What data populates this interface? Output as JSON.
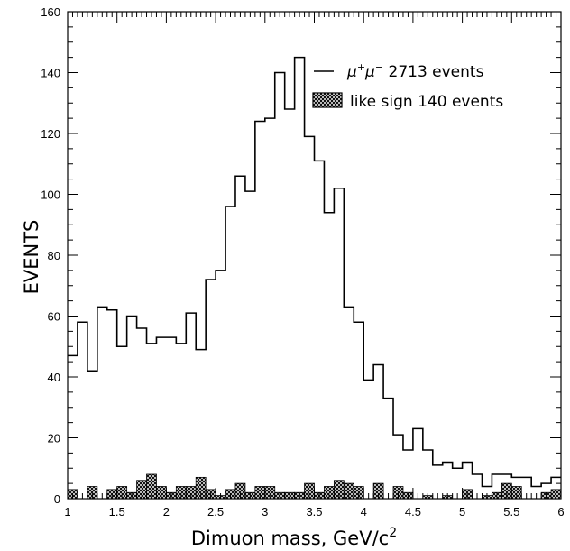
{
  "chart_data": {
    "type": "histogram",
    "xlabel": "Dimuon mass, GeV/c",
    "xlabel_superscript": "2",
    "ylabel": "EVENTS",
    "xlim": [
      1,
      6
    ],
    "ylim": [
      0,
      160
    ],
    "bin_width": 0.1,
    "x_ticks": [
      1,
      1.5,
      2,
      2.5,
      3,
      3.5,
      4,
      4.5,
      5,
      5.5,
      6
    ],
    "x_tick_labels": [
      "1",
      "1.5",
      "2",
      "2.5",
      "3",
      "3.5",
      "4",
      "4.5",
      "5",
      "5.5",
      "6"
    ],
    "y_ticks": [
      0,
      20,
      40,
      60,
      80,
      100,
      120,
      140,
      160
    ],
    "y_tick_labels": [
      "0",
      "20",
      "40",
      "60",
      "80",
      "100",
      "120",
      "140",
      "160"
    ],
    "legend_position": "top-right",
    "series": [
      {
        "name_main": "μ",
        "name_sup1": "+",
        "name_mid": "μ",
        "name_sup2": "−",
        "name_rest": " 2713 events",
        "style": "step-outline",
        "bin_edges_start": 1.0,
        "values": [
          47,
          58,
          42,
          63,
          62,
          50,
          60,
          56,
          51,
          53,
          53,
          51,
          61,
          49,
          72,
          75,
          96,
          106,
          101,
          124,
          125,
          140,
          128,
          145,
          119,
          111,
          94,
          102,
          63,
          58,
          39,
          44,
          33,
          21,
          16,
          23,
          16,
          11,
          12,
          10,
          12,
          8,
          4,
          8,
          8,
          7,
          7,
          4,
          5,
          7
        ]
      },
      {
        "name": "like sign 140 events",
        "style": "hatched-fill",
        "bin_edges_start": 1.0,
        "values": [
          3,
          0,
          4,
          0,
          3,
          4,
          2,
          6,
          8,
          4,
          2,
          4,
          4,
          7,
          3,
          1,
          3,
          5,
          2,
          4,
          4,
          2,
          2,
          2,
          5,
          2,
          4,
          6,
          5,
          4,
          0,
          5,
          0,
          4,
          2,
          0,
          1,
          0,
          1,
          0,
          3,
          0,
          1,
          2,
          5,
          4,
          0,
          0,
          2,
          3
        ]
      }
    ]
  }
}
